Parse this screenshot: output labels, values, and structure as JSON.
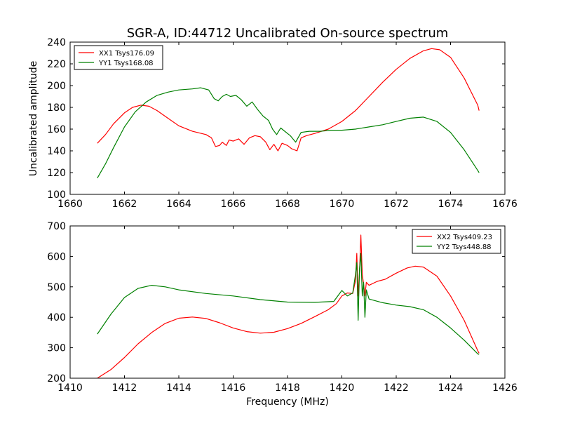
{
  "figure": {
    "title": "SGR-A, ID:44712 Uncalibrated On-source spectrum"
  },
  "colors": {
    "red": "#ff0000",
    "green": "#008000",
    "axis": "#000000"
  },
  "chart_data": [
    {
      "type": "line",
      "title": "SGR-A, ID:44712 Uncalibrated On-source spectrum",
      "xlabel": "",
      "ylabel": "Uncalibrated amplitude",
      "xlim": [
        1660,
        1676
      ],
      "ylim": [
        100,
        240
      ],
      "xticks": [
        1660,
        1662,
        1664,
        1666,
        1668,
        1670,
        1672,
        1674,
        1676
      ],
      "yticks": [
        100,
        120,
        140,
        160,
        180,
        200,
        220,
        240
      ],
      "legend_position": "top-left",
      "grid": false,
      "series": [
        {
          "name": "XX1 Tsys176.09",
          "color": "#ff0000",
          "x": [
            1661.0,
            1661.3,
            1661.6,
            1662.0,
            1662.3,
            1662.6,
            1662.9,
            1663.2,
            1663.6,
            1664.0,
            1664.5,
            1665.0,
            1665.2,
            1665.35,
            1665.5,
            1665.6,
            1665.75,
            1665.85,
            1666.0,
            1666.2,
            1666.4,
            1666.6,
            1666.8,
            1667.0,
            1667.2,
            1667.35,
            1667.5,
            1667.65,
            1667.8,
            1668.0,
            1668.15,
            1668.35,
            1668.5,
            1668.7,
            1669.0,
            1669.5,
            1670.0,
            1670.5,
            1671.0,
            1671.5,
            1672.0,
            1672.5,
            1673.0,
            1673.3,
            1673.6,
            1674.0,
            1674.5,
            1675.0,
            1675.05
          ],
          "y": [
            147,
            155,
            165,
            175,
            180,
            182,
            181,
            177,
            170,
            163,
            158,
            155,
            152,
            144,
            145,
            148,
            145,
            150,
            149,
            151,
            146,
            152,
            154,
            153,
            148,
            141,
            146,
            140,
            147,
            145,
            142,
            140,
            152,
            154,
            156,
            160,
            167,
            177,
            190,
            203,
            215,
            225,
            232,
            234,
            233,
            226,
            207,
            182,
            177
          ]
        },
        {
          "name": "YY1 Tsys168.08",
          "color": "#008000",
          "x": [
            1661.0,
            1661.3,
            1661.6,
            1662.0,
            1662.4,
            1662.8,
            1663.2,
            1663.6,
            1664.0,
            1664.5,
            1664.8,
            1665.1,
            1665.3,
            1665.45,
            1665.6,
            1665.75,
            1665.9,
            1666.1,
            1666.3,
            1666.5,
            1666.7,
            1666.9,
            1667.1,
            1667.3,
            1667.45,
            1667.6,
            1667.75,
            1667.9,
            1668.1,
            1668.3,
            1668.5,
            1668.8,
            1669.2,
            1669.6,
            1670.0,
            1670.5,
            1671.0,
            1671.5,
            1672.0,
            1672.5,
            1673.0,
            1673.5,
            1674.0,
            1674.5,
            1675.0,
            1675.05
          ],
          "y": [
            115,
            128,
            143,
            162,
            176,
            185,
            191,
            194,
            196,
            197,
            198,
            196,
            188,
            186,
            190,
            192,
            190,
            191,
            187,
            181,
            185,
            178,
            172,
            168,
            160,
            155,
            161,
            158,
            154,
            148,
            157,
            158,
            158,
            159,
            159,
            160,
            162,
            164,
            167,
            170,
            171,
            167,
            157,
            141,
            122,
            120
          ]
        }
      ]
    },
    {
      "type": "line",
      "title": "",
      "xlabel": "Frequency (MHz)",
      "ylabel": "",
      "xlim": [
        1410,
        1426
      ],
      "ylim": [
        200,
        700
      ],
      "xticks": [
        1410,
        1412,
        1414,
        1416,
        1418,
        1420,
        1422,
        1424,
        1426
      ],
      "yticks": [
        200,
        300,
        400,
        500,
        600,
        700
      ],
      "legend_position": "top-right",
      "grid": false,
      "series": [
        {
          "name": "XX2 Tsys409.23",
          "color": "#ff0000",
          "x": [
            1411.0,
            1411.5,
            1412.0,
            1412.5,
            1413.0,
            1413.5,
            1414.0,
            1414.5,
            1415.0,
            1415.5,
            1416.0,
            1416.5,
            1417.0,
            1417.5,
            1418.0,
            1418.5,
            1419.0,
            1419.5,
            1419.8,
            1420.0,
            1420.2,
            1420.4,
            1420.5,
            1420.55,
            1420.6,
            1420.65,
            1420.7,
            1420.75,
            1420.8,
            1420.85,
            1420.9,
            1421.0,
            1421.3,
            1421.6,
            1422.0,
            1422.4,
            1422.7,
            1423.0,
            1423.5,
            1424.0,
            1424.5,
            1425.0,
            1425.05
          ],
          "y": [
            200,
            228,
            268,
            313,
            350,
            380,
            397,
            401,
            396,
            382,
            365,
            353,
            348,
            351,
            363,
            380,
            402,
            425,
            445,
            470,
            480,
            478,
            520,
            610,
            470,
            550,
            670,
            540,
            510,
            470,
            515,
            505,
            518,
            525,
            545,
            562,
            568,
            565,
            535,
            470,
            390,
            290,
            282
          ]
        },
        {
          "name": "YY2 Tsys448.88",
          "color": "#008000",
          "x": [
            1411.0,
            1411.5,
            1412.0,
            1412.5,
            1413.0,
            1413.5,
            1414.0,
            1415.0,
            1416.0,
            1417.0,
            1418.0,
            1419.0,
            1419.7,
            1420.0,
            1420.2,
            1420.4,
            1420.5,
            1420.55,
            1420.6,
            1420.65,
            1420.7,
            1420.75,
            1420.8,
            1420.85,
            1420.9,
            1421.0,
            1421.5,
            1422.0,
            1422.5,
            1423.0,
            1423.5,
            1424.0,
            1424.5,
            1425.0,
            1425.05
          ],
          "y": [
            345,
            410,
            465,
            495,
            505,
            500,
            490,
            478,
            470,
            458,
            450,
            449,
            452,
            488,
            470,
            480,
            540,
            580,
            390,
            560,
            610,
            470,
            515,
            400,
            490,
            460,
            448,
            440,
            435,
            425,
            400,
            365,
            325,
            280,
            278
          ]
        }
      ]
    }
  ]
}
